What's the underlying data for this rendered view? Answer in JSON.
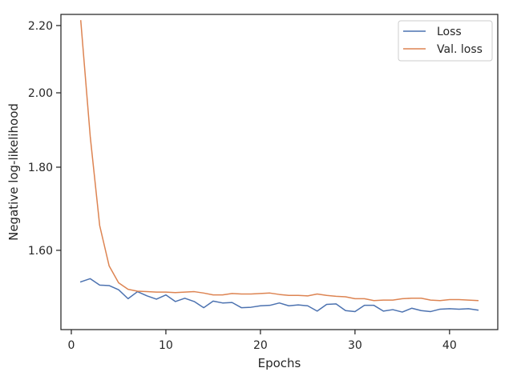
{
  "chart_data": {
    "type": "line",
    "title": "",
    "xlabel": "Epochs",
    "ylabel": "Negative log-likelihood",
    "xlim": [
      -1.1,
      45.1
    ],
    "ylim": [
      1.43,
      2.235
    ],
    "yscale": "log",
    "xticks": [
      0,
      10,
      20,
      30,
      40
    ],
    "xtick_labels": [
      "0",
      "10",
      "20",
      "30",
      "40"
    ],
    "yticks": [
      1.6,
      1.8,
      2.0,
      2.2
    ],
    "ytick_labels": [
      "1.60",
      "1.80",
      "2.00",
      "2.20"
    ],
    "grid": false,
    "legend_position": "top-right",
    "x": [
      1,
      2,
      3,
      4,
      5,
      6,
      7,
      8,
      9,
      10,
      11,
      12,
      13,
      14,
      15,
      16,
      17,
      18,
      19,
      20,
      21,
      22,
      23,
      24,
      25,
      26,
      27,
      28,
      29,
      30,
      31,
      32,
      33,
      34,
      35,
      36,
      37,
      38,
      39,
      40,
      41,
      42,
      43
    ],
    "series": [
      {
        "name": "Loss",
        "color": "#4c72b0",
        "values": [
          1.53,
          1.537,
          1.523,
          1.522,
          1.513,
          1.494,
          1.509,
          1.5,
          1.493,
          1.502,
          1.488,
          1.495,
          1.488,
          1.475,
          1.489,
          1.485,
          1.486,
          1.475,
          1.476,
          1.479,
          1.48,
          1.485,
          1.479,
          1.481,
          1.479,
          1.468,
          1.482,
          1.483,
          1.469,
          1.467,
          1.48,
          1.48,
          1.468,
          1.471,
          1.466,
          1.474,
          1.469,
          1.467,
          1.472,
          1.473,
          1.472,
          1.473,
          1.47
        ]
      },
      {
        "name": "Val. loss",
        "color": "#dd8452",
        "values": [
          2.215,
          1.88,
          1.657,
          1.565,
          1.528,
          1.514,
          1.51,
          1.509,
          1.508,
          1.508,
          1.507,
          1.508,
          1.509,
          1.506,
          1.502,
          1.502,
          1.505,
          1.504,
          1.504,
          1.505,
          1.506,
          1.503,
          1.501,
          1.501,
          1.5,
          1.504,
          1.501,
          1.499,
          1.498,
          1.494,
          1.494,
          1.49,
          1.491,
          1.491,
          1.494,
          1.495,
          1.495,
          1.491,
          1.49,
          1.492,
          1.492,
          1.491,
          1.49
        ]
      }
    ]
  }
}
